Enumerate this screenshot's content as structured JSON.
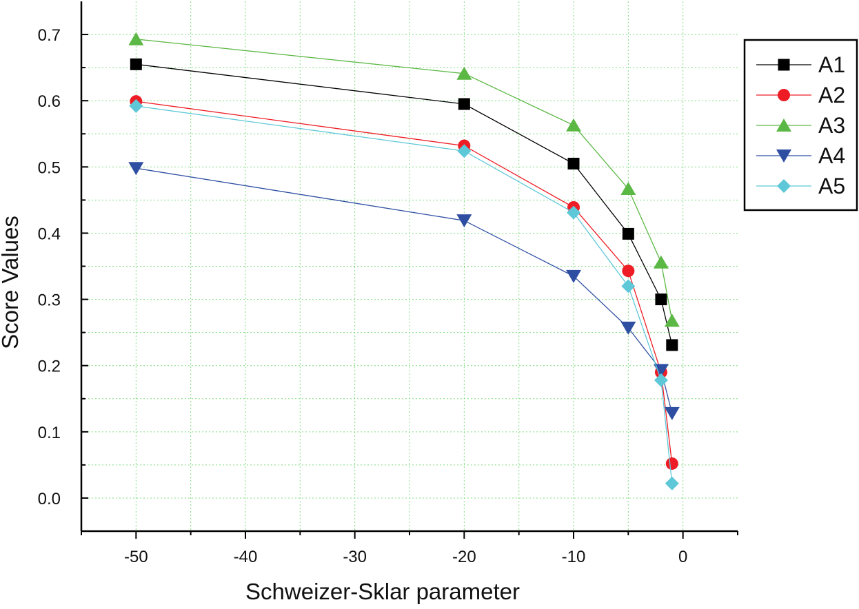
{
  "chart_data": {
    "type": "line",
    "title": "",
    "xlabel": "Schweizer-Sklar parameter",
    "ylabel": "Score Values",
    "xlim": [
      -55,
      5
    ],
    "ylim": [
      -0.05,
      0.75
    ],
    "grid": true,
    "legend_position": "top-right",
    "x": [
      -50,
      -20,
      -10,
      -5,
      -2,
      -1
    ],
    "x_ticks": [
      -50,
      -40,
      -30,
      -20,
      -10,
      0
    ],
    "x_tick_labels": [
      "-50",
      "-40",
      "-30",
      "-20",
      "-10",
      "0"
    ],
    "y_ticks": [
      0.0,
      0.1,
      0.2,
      0.3,
      0.4,
      0.5,
      0.6,
      0.7
    ],
    "y_tick_labels": [
      "0.0",
      "0.1",
      "0.2",
      "0.3",
      "0.4",
      "0.5",
      "0.6",
      "0.7"
    ],
    "series": [
      {
        "name": "A1",
        "color": "#000000",
        "marker": "square",
        "values": [
          0.655,
          0.595,
          0.505,
          0.399,
          0.3,
          0.231
        ]
      },
      {
        "name": "A2",
        "color": "#ee1c25",
        "marker": "circle",
        "values": [
          0.599,
          0.532,
          0.439,
          0.343,
          0.19,
          0.052
        ]
      },
      {
        "name": "A3",
        "color": "#5cb845",
        "marker": "triangle-up",
        "values": [
          0.693,
          0.641,
          0.563,
          0.467,
          0.356,
          0.268
        ]
      },
      {
        "name": "A4",
        "color": "#2e4ea2",
        "marker": "triangle-down",
        "values": [
          0.498,
          0.419,
          0.335,
          0.257,
          0.193,
          0.128
        ]
      },
      {
        "name": "A5",
        "color": "#5ec8d8",
        "marker": "diamond",
        "values": [
          0.592,
          0.524,
          0.431,
          0.32,
          0.178,
          0.022
        ]
      }
    ]
  }
}
